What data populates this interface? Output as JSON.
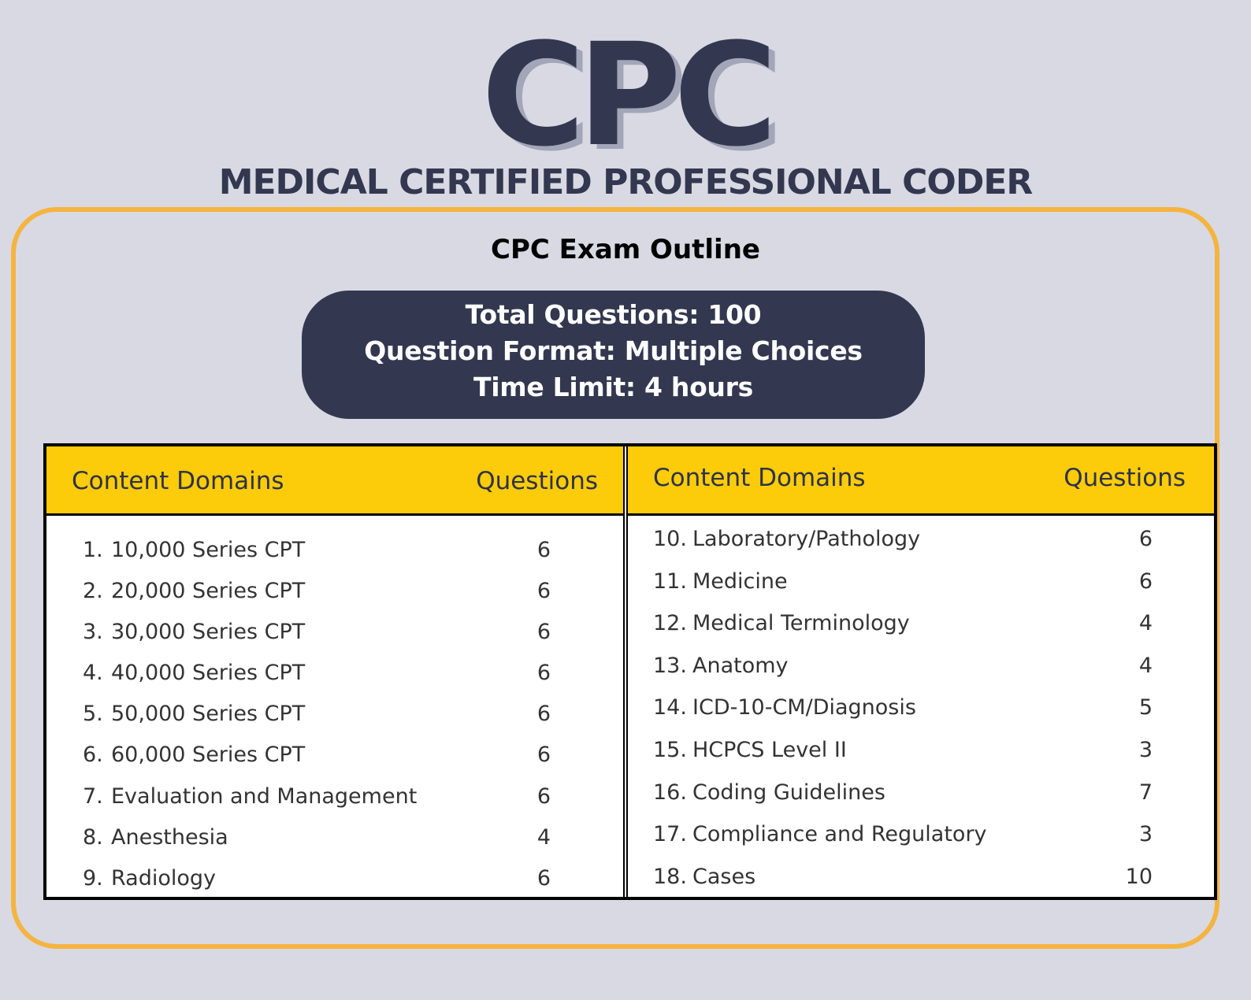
{
  "header": {
    "logo_text": "CPC",
    "subtitle": "MEDICAL CERTIFIED PROFESSIONAL CODER"
  },
  "outline": {
    "title": "CPC Exam Outline",
    "info": {
      "total_questions": "Total Questions: 100",
      "question_format": "Question Format: Multiple Choices",
      "time_limit": "Time Limit: 4 hours"
    }
  },
  "colors": {
    "navy": "#333850",
    "background": "#d8d9e3",
    "frame_orange": "#f5b43f",
    "header_yellow": "#fccc0a"
  },
  "table": {
    "left": {
      "header_domain": "Content Domains",
      "header_questions": "Questions",
      "rows": [
        {
          "num": "1.",
          "label": "10,000 Series CPT",
          "count": "6"
        },
        {
          "num": "2.",
          "label": "20,000 Series CPT",
          "count": "6"
        },
        {
          "num": "3.",
          "label": "30,000 Series CPT",
          "count": "6"
        },
        {
          "num": "4.",
          "label": "40,000 Series CPT",
          "count": "6"
        },
        {
          "num": "5.",
          "label": "50,000 Series CPT",
          "count": "6"
        },
        {
          "num": "6.",
          "label": "60,000 Series CPT",
          "count": "6"
        },
        {
          "num": "7.",
          "label": "Evaluation and Management",
          "count": "6"
        },
        {
          "num": "8.",
          "label": "Anesthesia",
          "count": "4"
        },
        {
          "num": "9.",
          "label": "Radiology",
          "count": "6"
        }
      ]
    },
    "right": {
      "header_domain": "Content Domains",
      "header_questions": "Questions",
      "rows": [
        {
          "num": "10.",
          "label": "Laboratory/Pathology",
          "count": "6"
        },
        {
          "num": "11.",
          "label": "Medicine",
          "count": "6"
        },
        {
          "num": "12.",
          "label": "Medical Terminology",
          "count": "4"
        },
        {
          "num": "13.",
          "label": "Anatomy",
          "count": "4"
        },
        {
          "num": "14.",
          "label": "ICD-10-CM/Diagnosis",
          "count": "5"
        },
        {
          "num": "15.",
          "label": "HCPCS Level II",
          "count": "3"
        },
        {
          "num": "16.",
          "label": "Coding Guidelines",
          "count": "7"
        },
        {
          "num": "17.",
          "label": "Compliance and Regulatory",
          "count": "3"
        },
        {
          "num": "18.",
          "label": "Cases",
          "count": "10"
        }
      ]
    }
  }
}
